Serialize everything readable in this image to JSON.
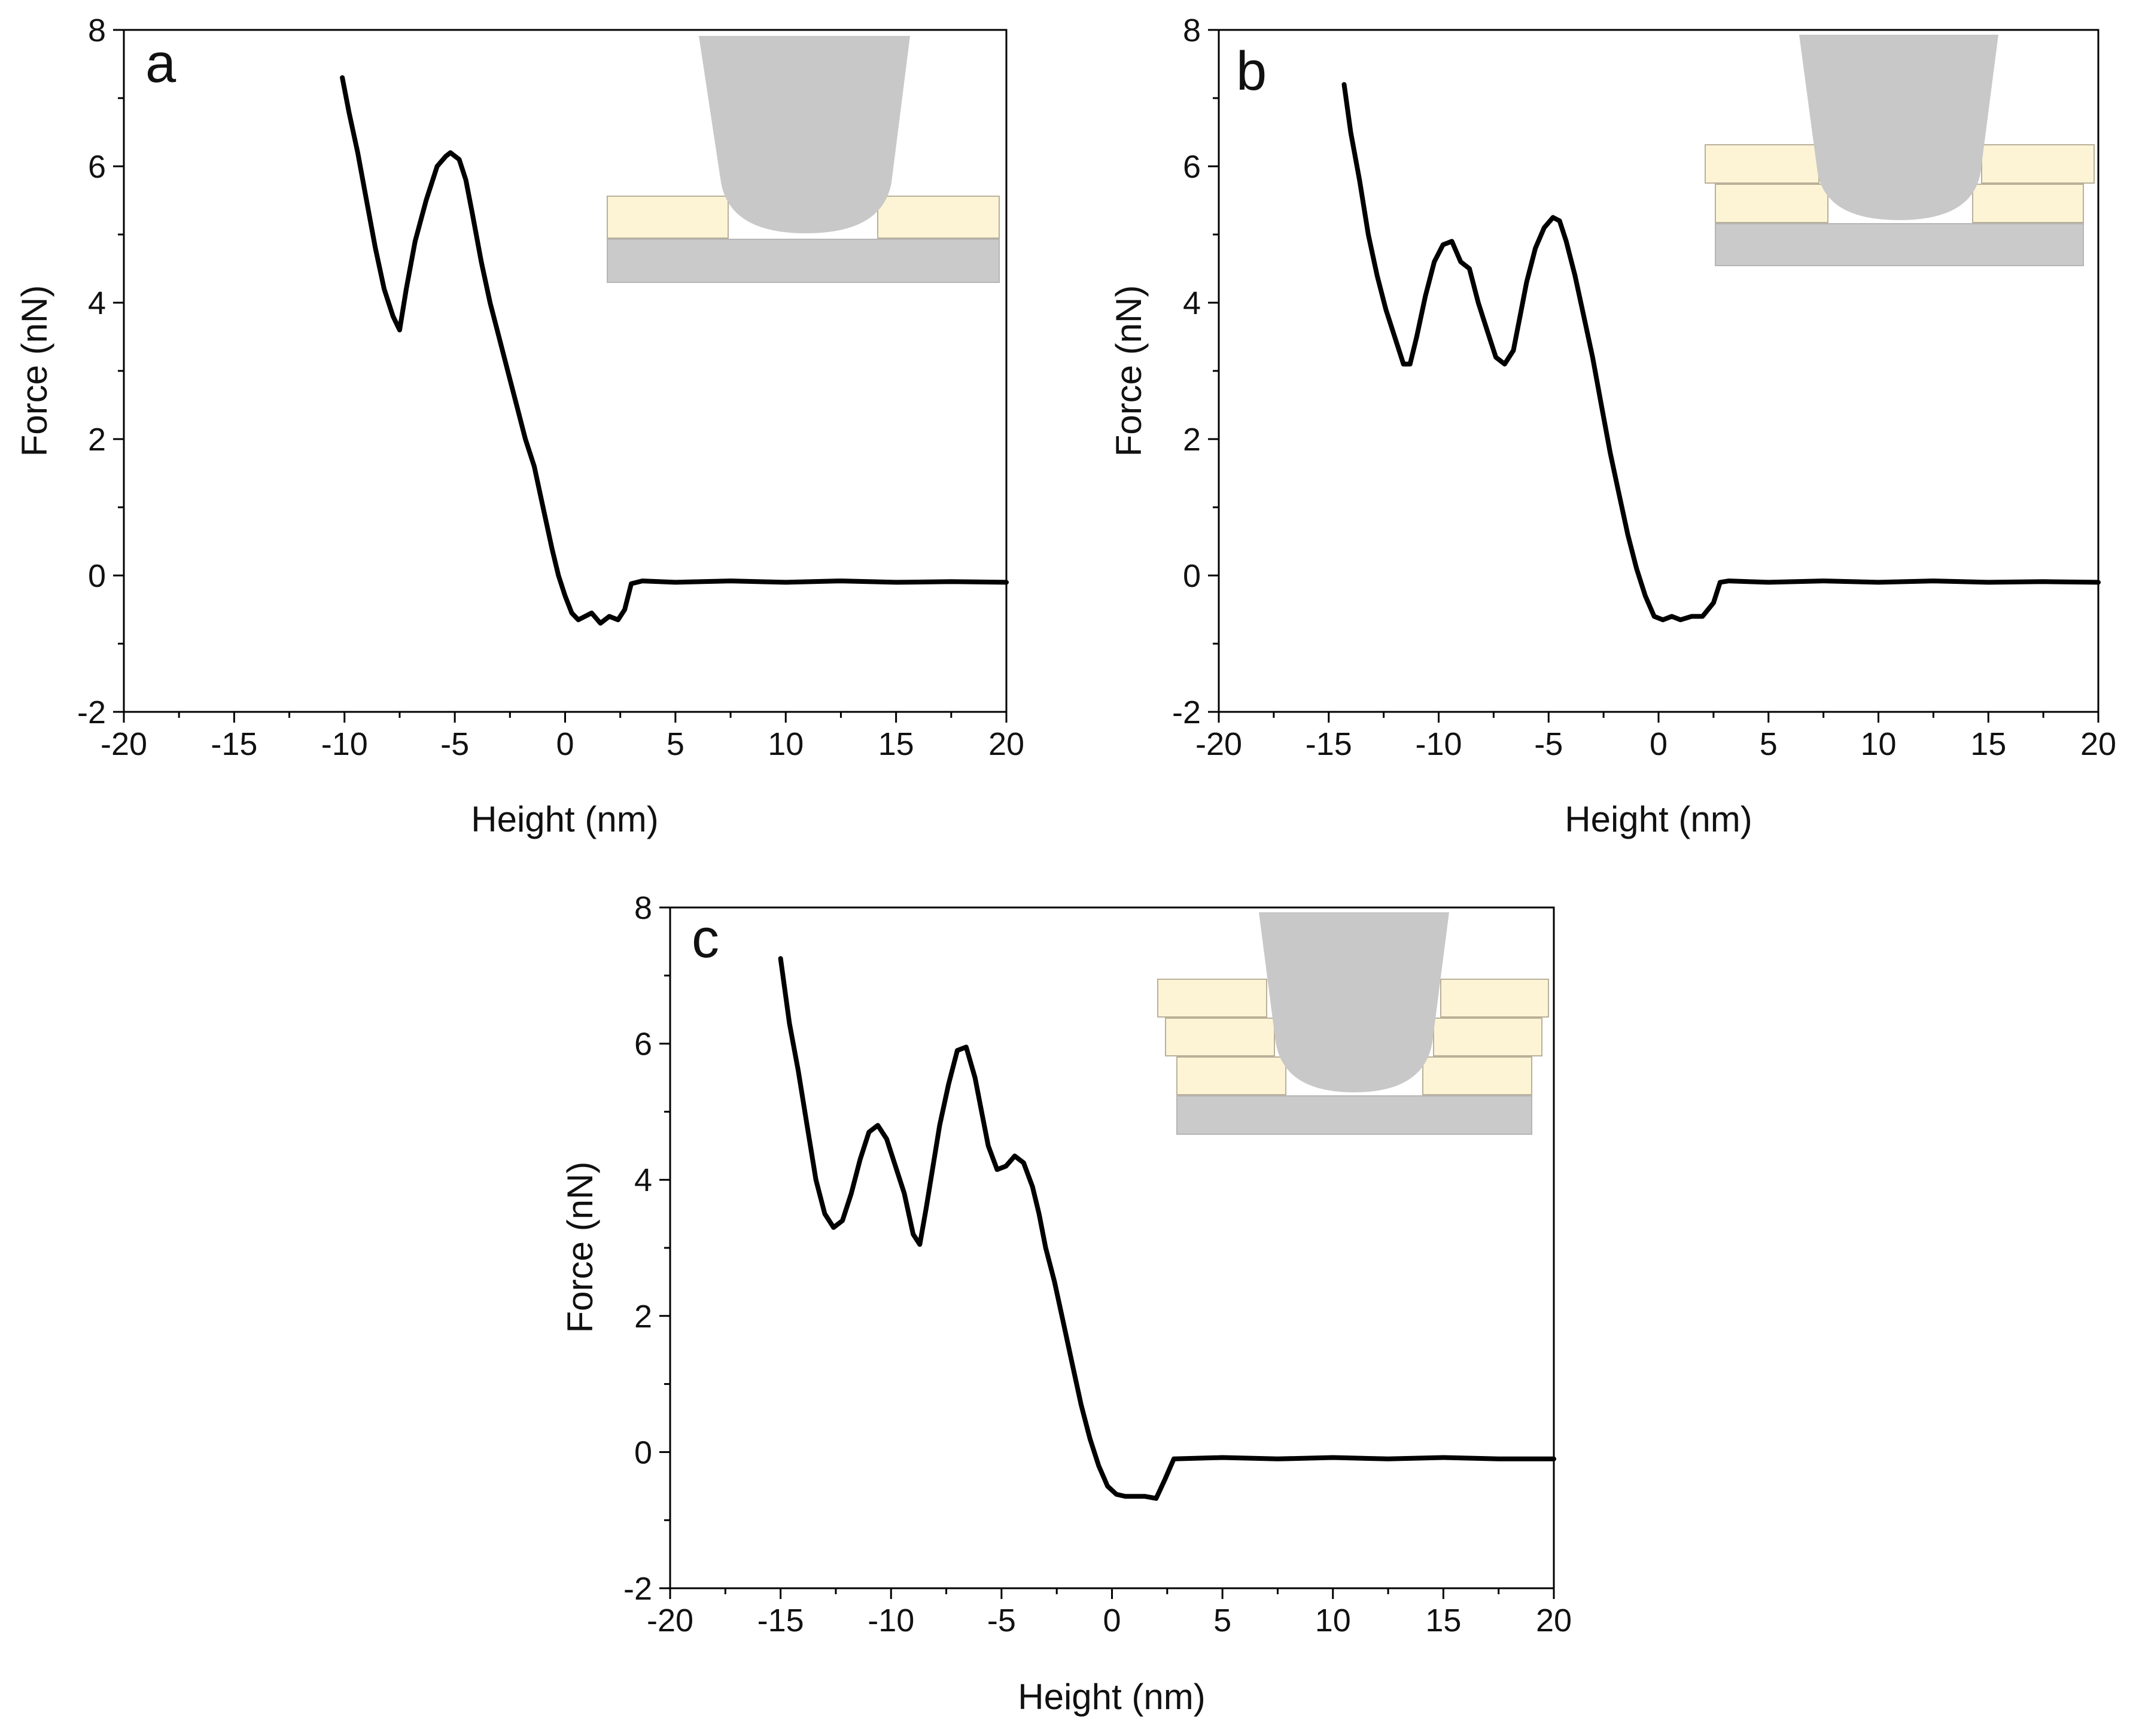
{
  "figure": {
    "colors": {
      "curve": "#000000",
      "axis": "#000000",
      "tip": "#c8c8c8",
      "substrate": "#cacaca",
      "layer_fill": "#fdf4d6",
      "layer_stroke": "#b9b098"
    }
  },
  "chart_data": [
    {
      "id": "a",
      "type": "line",
      "panel_label": "a",
      "xlabel": "Height (nm)",
      "ylabel": "Force (nN)",
      "xlim": [
        -20,
        20
      ],
      "ylim": [
        -2,
        8
      ],
      "xticks": [
        -20,
        -15,
        -10,
        -5,
        0,
        5,
        10,
        15,
        20
      ],
      "yticks": [
        -2,
        0,
        2,
        4,
        6,
        8
      ],
      "xtick_labels": [
        "-20",
        "-15",
        "-10",
        "-5",
        "0",
        "5",
        "10",
        "15",
        "20"
      ],
      "ytick_labels": [
        "-2",
        "0",
        "2",
        "4",
        "6",
        "8"
      ],
      "inset_layers": 1,
      "x": [
        -10.1,
        -9.8,
        -9.4,
        -9.0,
        -8.6,
        -8.2,
        -7.8,
        -7.5,
        -7.2,
        -6.8,
        -6.3,
        -5.8,
        -5.4,
        -5.2,
        -5.0,
        -4.8,
        -4.5,
        -4.2,
        -3.8,
        -3.4,
        -3.0,
        -2.6,
        -2.2,
        -1.8,
        -1.4,
        -1.0,
        -0.6,
        -0.3,
        0.0,
        0.3,
        0.6,
        0.9,
        1.2,
        1.6,
        2.0,
        2.4,
        2.7,
        3.0,
        3.5,
        5,
        7.5,
        10,
        12.5,
        15,
        17.5,
        20
      ],
      "y": [
        7.3,
        6.8,
        6.2,
        5.5,
        4.8,
        4.2,
        3.8,
        3.6,
        4.2,
        4.9,
        5.5,
        6.0,
        6.15,
        6.2,
        6.15,
        6.1,
        5.8,
        5.3,
        4.6,
        4.0,
        3.5,
        3.0,
        2.5,
        2.0,
        1.6,
        1.0,
        0.4,
        0.0,
        -0.3,
        -0.55,
        -0.65,
        -0.6,
        -0.55,
        -0.7,
        -0.6,
        -0.65,
        -0.5,
        -0.12,
        -0.08,
        -0.1,
        -0.08,
        -0.1,
        -0.08,
        -0.1,
        -0.09,
        -0.1
      ]
    },
    {
      "id": "b",
      "type": "line",
      "panel_label": "b",
      "xlabel": "Height (nm)",
      "ylabel": "Force (nN)",
      "xlim": [
        -20,
        20
      ],
      "ylim": [
        -2,
        8
      ],
      "xticks": [
        -20,
        -15,
        -10,
        -5,
        0,
        5,
        10,
        15,
        20
      ],
      "yticks": [
        -2,
        0,
        2,
        4,
        6,
        8
      ],
      "xtick_labels": [
        "-20",
        "-15",
        "-10",
        "-5",
        "0",
        "5",
        "10",
        "15",
        "20"
      ],
      "ytick_labels": [
        "-2",
        "0",
        "2",
        "4",
        "6",
        "8"
      ],
      "inset_layers": 2,
      "x": [
        -14.3,
        -14.0,
        -13.6,
        -13.2,
        -12.8,
        -12.4,
        -12.0,
        -11.6,
        -11.3,
        -11.0,
        -10.6,
        -10.2,
        -9.8,
        -9.4,
        -9.0,
        -8.6,
        -8.2,
        -7.8,
        -7.4,
        -7.0,
        -6.6,
        -6.3,
        -6.0,
        -5.6,
        -5.2,
        -4.8,
        -4.5,
        -4.2,
        -3.8,
        -3.4,
        -3.0,
        -2.6,
        -2.2,
        -1.8,
        -1.4,
        -1.0,
        -0.6,
        -0.2,
        0.2,
        0.6,
        1.0,
        1.5,
        2.0,
        2.5,
        2.8,
        3.2,
        5,
        7.5,
        10,
        12.5,
        15,
        17.5,
        20
      ],
      "y": [
        7.2,
        6.5,
        5.8,
        5.0,
        4.4,
        3.9,
        3.5,
        3.1,
        3.1,
        3.5,
        4.1,
        4.6,
        4.85,
        4.9,
        4.6,
        4.5,
        4.0,
        3.6,
        3.2,
        3.1,
        3.3,
        3.8,
        4.3,
        4.8,
        5.1,
        5.25,
        5.2,
        4.9,
        4.4,
        3.8,
        3.2,
        2.5,
        1.8,
        1.2,
        0.6,
        0.1,
        -0.3,
        -0.6,
        -0.65,
        -0.6,
        -0.65,
        -0.6,
        -0.6,
        -0.4,
        -0.1,
        -0.08,
        -0.1,
        -0.08,
        -0.1,
        -0.08,
        -0.1,
        -0.09,
        -0.1
      ]
    },
    {
      "id": "c",
      "type": "line",
      "panel_label": "c",
      "xlabel": "Height (nm)",
      "ylabel": "Force (nN)",
      "xlim": [
        -20,
        20
      ],
      "ylim": [
        -2,
        8
      ],
      "xticks": [
        -20,
        -15,
        -10,
        -5,
        0,
        5,
        10,
        15,
        20
      ],
      "yticks": [
        -2,
        0,
        2,
        4,
        6,
        8
      ],
      "xtick_labels": [
        "-20",
        "-15",
        "-10",
        "-5",
        "0",
        "5",
        "10",
        "15",
        "20"
      ],
      "ytick_labels": [
        "-2",
        "0",
        "2",
        "4",
        "6",
        "8"
      ],
      "inset_layers": 3,
      "x": [
        -15.0,
        -14.6,
        -14.2,
        -13.8,
        -13.4,
        -13.0,
        -12.6,
        -12.2,
        -11.8,
        -11.4,
        -11.0,
        -10.6,
        -10.2,
        -9.8,
        -9.4,
        -9.0,
        -8.7,
        -8.4,
        -8.1,
        -7.8,
        -7.4,
        -7.0,
        -6.6,
        -6.2,
        -5.9,
        -5.6,
        -5.2,
        -4.8,
        -4.4,
        -4.0,
        -3.6,
        -3.3,
        -3.0,
        -2.6,
        -2.2,
        -1.8,
        -1.4,
        -1.0,
        -0.6,
        -0.2,
        0.2,
        0.6,
        1.0,
        1.5,
        2.0,
        2.4,
        2.8,
        5,
        7.5,
        10,
        12.5,
        15,
        17.5,
        20
      ],
      "y": [
        7.25,
        6.3,
        5.6,
        4.8,
        4.0,
        3.5,
        3.3,
        3.4,
        3.8,
        4.3,
        4.7,
        4.8,
        4.6,
        4.2,
        3.8,
        3.2,
        3.05,
        3.6,
        4.2,
        4.8,
        5.4,
        5.9,
        5.95,
        5.5,
        5.0,
        4.5,
        4.15,
        4.2,
        4.35,
        4.25,
        3.9,
        3.5,
        3.0,
        2.5,
        1.9,
        1.3,
        0.7,
        0.2,
        -0.2,
        -0.5,
        -0.62,
        -0.65,
        -0.65,
        -0.65,
        -0.68,
        -0.4,
        -0.1,
        -0.08,
        -0.1,
        -0.08,
        -0.1,
        -0.08,
        -0.1,
        -0.1
      ]
    }
  ]
}
